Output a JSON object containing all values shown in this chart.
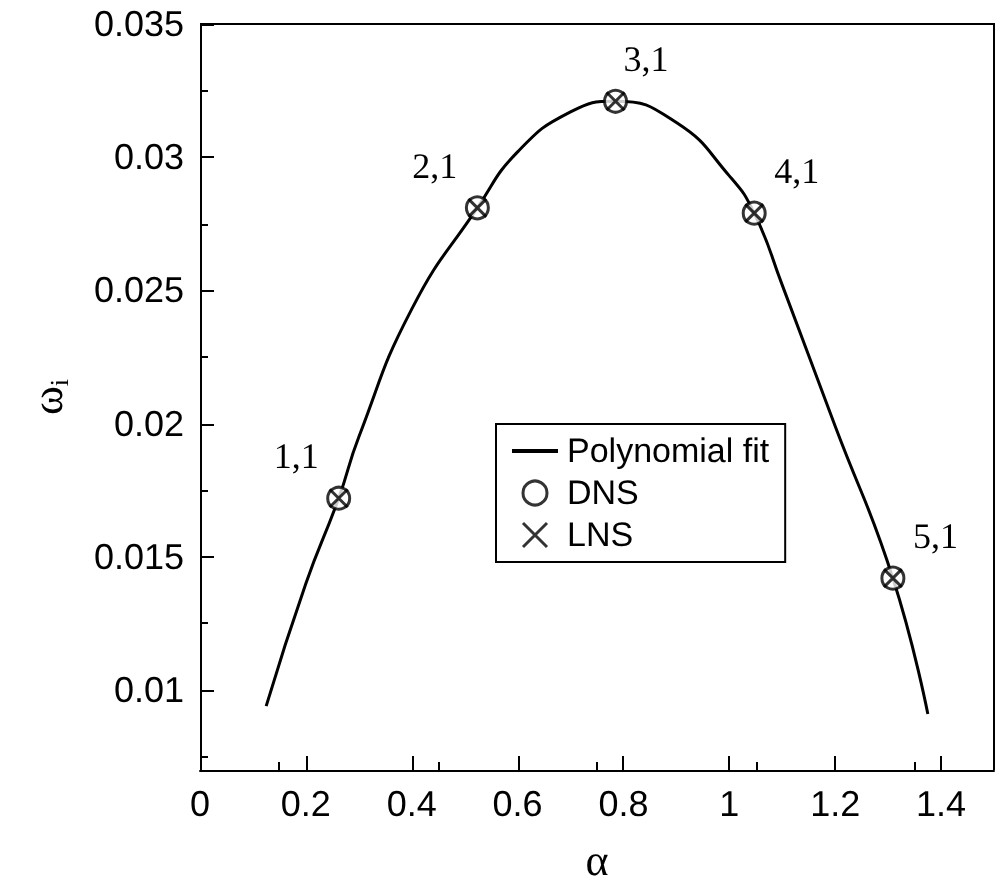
{
  "chart_data": {
    "type": "scatter",
    "xlabel": "α",
    "ylabel": "ω$_{i}$",
    "xlim": [
      0,
      1.5
    ],
    "xticks": [
      0,
      0.2,
      0.4,
      0.6,
      0.8,
      1,
      1.2,
      1.4
    ],
    "ylim": [
      0.007,
      0.035
    ],
    "yticks": [
      0.01,
      0.015,
      0.02,
      0.025,
      0.03,
      0.035
    ],
    "grid": false,
    "legend": "right",
    "series": [
      {
        "name": "Polynomial fit",
        "type": "line",
        "color": "#000000",
        "marker": "none",
        "line_style": "solid",
        "x": [
          0.125,
          0.2,
          0.262,
          0.3,
          0.4,
          0.524,
          0.6,
          0.7,
          0.785,
          0.9,
          1.0,
          1.047,
          1.1,
          1.2,
          1.309,
          1.375
        ],
        "values": [
          0.0094,
          0.014,
          0.0172,
          0.0195,
          0.0243,
          0.0281,
          0.0302,
          0.0317,
          0.0321,
          0.0313,
          0.0293,
          0.0279,
          0.0252,
          0.0199,
          0.0142,
          0.0091
        ]
      },
      {
        "name": "DNS",
        "color": "#000000",
        "marker": "circle",
        "x": [
          0.262,
          0.524,
          0.785,
          1.047,
          1.309
        ],
        "values": [
          0.0172,
          0.0281,
          0.0321,
          0.0279,
          0.0142
        ]
      },
      {
        "name": "LNS",
        "color": "#000000",
        "marker": "cross",
        "x": [
          0.262,
          0.524,
          0.785,
          1.047,
          1.309
        ],
        "values": [
          0.0172,
          0.0281,
          0.0321,
          0.0279,
          0.0142
        ]
      }
    ],
    "annotations": [
      {
        "text": "1,1",
        "x": 0.262,
        "y": 0.0172
      },
      {
        "text": "2,1",
        "x": 0.524,
        "y": 0.0281
      },
      {
        "text": "3,1",
        "x": 0.785,
        "y": 0.0321
      },
      {
        "text": "4,1",
        "x": 1.047,
        "y": 0.0279
      },
      {
        "text": "5,1",
        "x": 1.309,
        "y": 0.0142
      }
    ]
  }
}
